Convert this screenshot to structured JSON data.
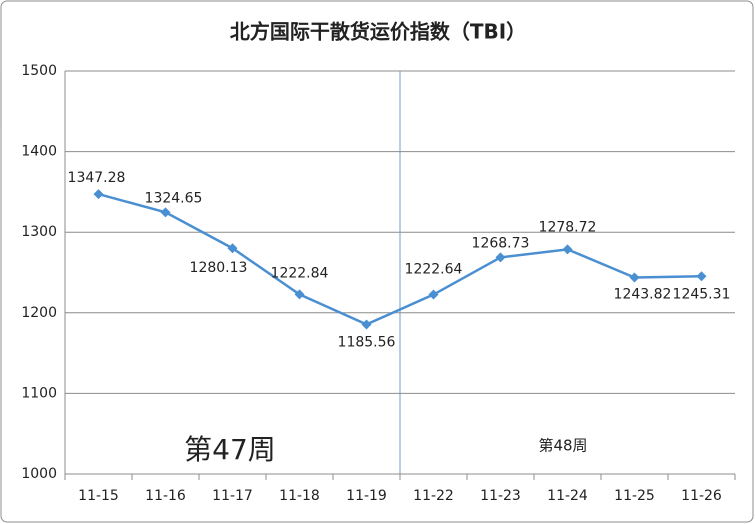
{
  "chart_data": {
    "type": "line",
    "title": "北方国际干散货运价指数（TBI）",
    "categories": [
      "11-15",
      "11-16",
      "11-17",
      "11-18",
      "11-19",
      "11-22",
      "11-23",
      "11-24",
      "11-25",
      "11-26"
    ],
    "values": [
      1347.28,
      1324.65,
      1280.13,
      1222.84,
      1185.56,
      1222.64,
      1268.73,
      1278.72,
      1243.82,
      1245.31
    ],
    "color": "#4a8fd2",
    "ylim": [
      1000,
      1500
    ],
    "yticks": [
      1000,
      1100,
      1200,
      1300,
      1400,
      1500
    ],
    "grid": true,
    "annotations": [
      "第47周",
      "第48周"
    ]
  }
}
